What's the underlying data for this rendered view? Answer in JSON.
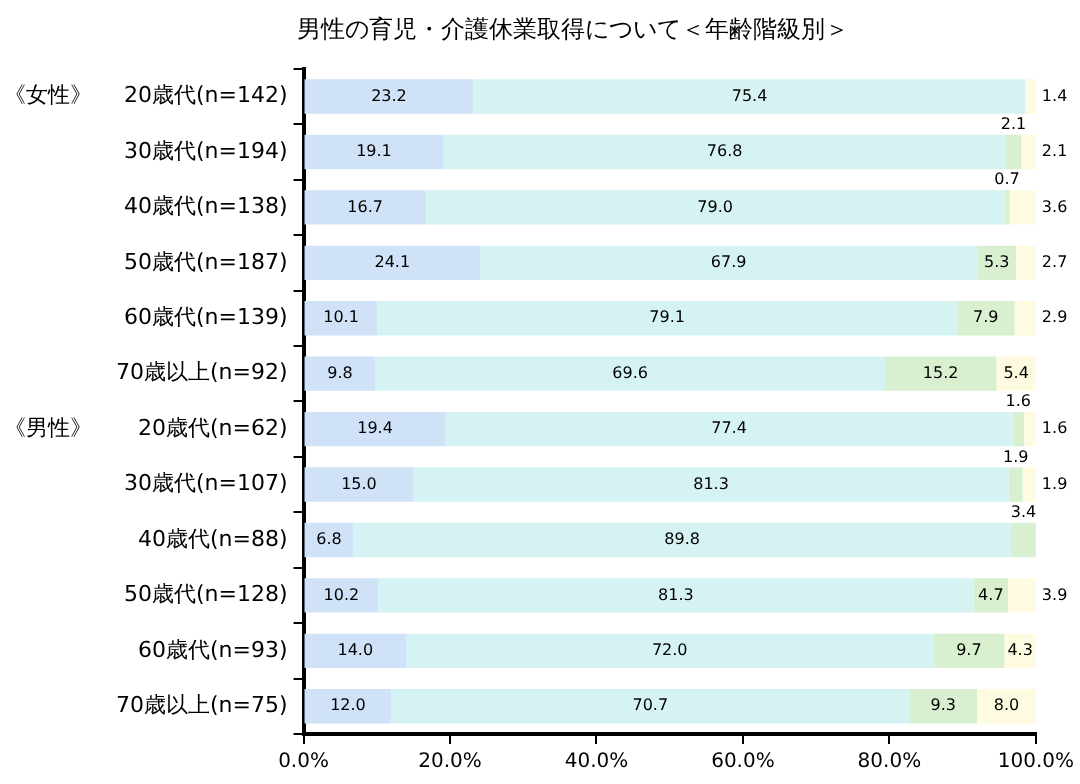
{
  "chart_data": {
    "type": "bar",
    "orientation": "horizontal",
    "stacked": true,
    "title": "男性の育児・介護休業取得について＜年齢階級別＞",
    "categories": [
      "20歳代(n=142)",
      "30歳代(n=194)",
      "40歳代(n=138)",
      "50歳代(n=187)",
      "60歳代(n=139)",
      "70歳以上(n=92)",
      "20歳代(n=62)",
      "30歳代(n=107)",
      "40歳代(n=88)",
      "50歳代(n=128)",
      "60歳代(n=93)",
      "70歳以上(n=75)"
    ],
    "series": [
      {
        "color": "#cfe2f7",
        "values": [
          23.2,
          19.1,
          16.7,
          24.1,
          10.1,
          9.8,
          19.4,
          15.0,
          6.8,
          10.2,
          14.0,
          12.0
        ],
        "value_labels": [
          "23.2",
          "19.1",
          "16.7",
          "24.1",
          "10.1",
          "9.8",
          "19.4",
          "15.0",
          "6.8",
          "10.2",
          "14.0",
          "12.0"
        ]
      },
      {
        "color": "#d6f3f3",
        "values": [
          75.4,
          76.8,
          79.0,
          67.9,
          79.1,
          69.6,
          77.4,
          81.3,
          89.8,
          81.3,
          72.0,
          70.7
        ],
        "value_labels": [
          "75.4",
          "76.8",
          "79.0",
          "67.9",
          "79.1",
          "69.6",
          "77.4",
          "81.3",
          "89.8",
          "81.3",
          "72.0",
          "70.7"
        ]
      },
      {
        "color": "#d8f0cf",
        "values": [
          null,
          2.1,
          0.7,
          5.3,
          7.9,
          15.2,
          1.6,
          1.9,
          3.4,
          4.7,
          9.7,
          9.3
        ],
        "value_labels": [
          null,
          "2.1",
          "0.7",
          "5.3",
          "7.9",
          "15.2",
          "1.6",
          "1.9",
          "3.4",
          "4.7",
          "9.7",
          "9.3"
        ]
      },
      {
        "color": "#fffbe0",
        "values": [
          1.4,
          2.1,
          3.6,
          2.7,
          2.9,
          5.4,
          1.6,
          1.9,
          null,
          3.9,
          4.3,
          8.0
        ],
        "value_labels": [
          "1.4",
          "2.1",
          "3.6",
          "2.7",
          "2.9",
          "5.4",
          "1.6",
          "1.9",
          null,
          "3.9",
          "4.3",
          "8.0"
        ]
      }
    ],
    "xlim": [
      0,
      100
    ],
    "xticks": [
      {
        "value": 0,
        "label": "0.0%"
      },
      {
        "value": 20,
        "label": "20.0%"
      },
      {
        "value": 40,
        "label": "40.0%"
      },
      {
        "value": 60,
        "label": "60.0%"
      },
      {
        "value": 80,
        "label": "80.0%"
      },
      {
        "value": 100,
        "label": "100.0%"
      }
    ],
    "annotations": [
      "《女性》",
      "《男性》"
    ],
    "grid": false,
    "legend": false
  }
}
